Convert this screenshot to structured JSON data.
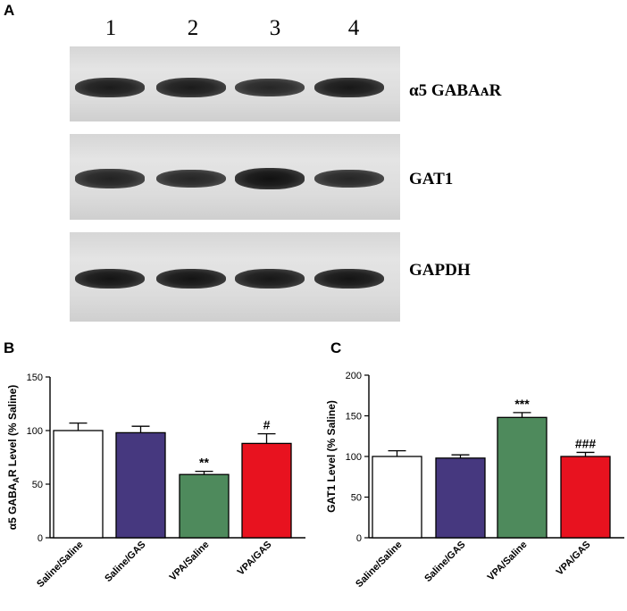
{
  "panels": {
    "a": "A",
    "b": "B",
    "c": "C"
  },
  "blot": {
    "lanes": [
      "1",
      "2",
      "3",
      "4"
    ],
    "rows": [
      {
        "label": "α5 GABAᴀR",
        "intensity": [
          1.0,
          1.0,
          0.85,
          1.05
        ]
      },
      {
        "label": "GAT1",
        "intensity": [
          0.9,
          0.85,
          1.2,
          0.85
        ]
      },
      {
        "label": "GAPDH",
        "intensity": [
          1.1,
          1.1,
          1.05,
          1.1
        ]
      }
    ]
  },
  "chart_data": [
    {
      "type": "bar",
      "ylabel": "α5 GABA",
      "ylabel_sub": "A",
      "ylabel_rest": "R Level (% Saline)",
      "categories": [
        "Saline/Saline",
        "Saline/GAS",
        "VPA/Saline",
        "VPA/GAS"
      ],
      "values": [
        100,
        98,
        59,
        88
      ],
      "errors": [
        7,
        6,
        3,
        9
      ],
      "annotations": [
        "",
        "",
        "**",
        "#"
      ],
      "colors": [
        "#ffffff",
        "#46387f",
        "#4e8a5c",
        "#e8121f"
      ],
      "ylim": [
        0,
        150
      ],
      "yticks": [
        0,
        50,
        100,
        150
      ]
    },
    {
      "type": "bar",
      "ylabel": "GAT1 Level (% Saline)",
      "categories": [
        "Saline/Saline",
        "Saline/GAS",
        "VPA/Saline",
        "VPA/GAS"
      ],
      "values": [
        100,
        98,
        148,
        100
      ],
      "errors": [
        7,
        4,
        6,
        5
      ],
      "annotations": [
        "",
        "",
        "***",
        "###"
      ],
      "colors": [
        "#ffffff",
        "#46387f",
        "#4e8a5c",
        "#e8121f"
      ],
      "ylim": [
        0,
        200
      ],
      "yticks": [
        0,
        50,
        100,
        150,
        200
      ]
    }
  ]
}
